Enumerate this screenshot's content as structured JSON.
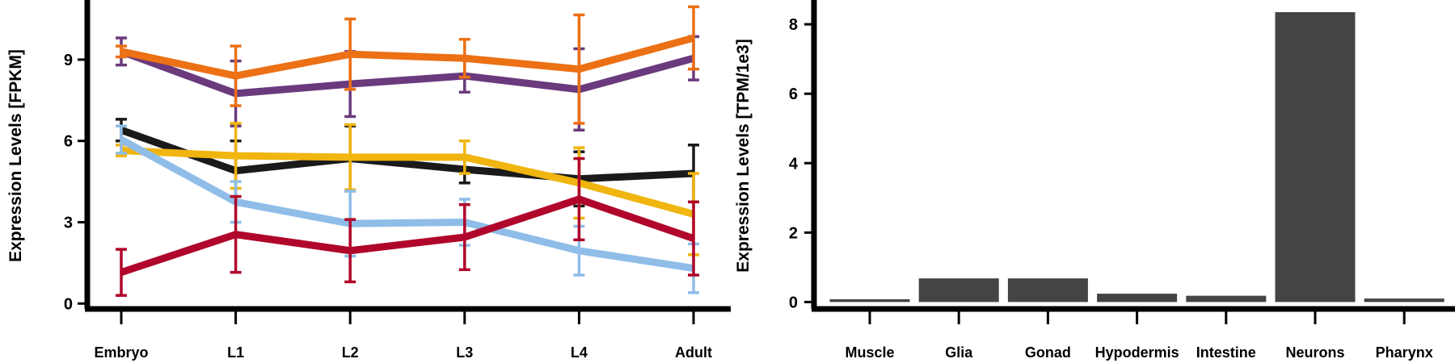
{
  "chart_data": [
    {
      "type": "line",
      "ylabel": "Expression Levels [FPKM]",
      "xlabel": "",
      "categories": [
        "Embryo",
        "L1",
        "L2",
        "L3",
        "L4",
        "Adult"
      ],
      "ylim": [
        -0.2,
        11.2
      ],
      "yticks": [
        "0",
        "3",
        "6",
        "9"
      ],
      "ytick_values": [
        0,
        3,
        6,
        9
      ],
      "grid": false,
      "series": [
        {
          "color": "#6b3a7d",
          "values": [
            9.3,
            7.75,
            8.1,
            8.4,
            7.9,
            9.05
          ],
          "errors": [
            0.5,
            1.2,
            1.2,
            0.6,
            1.5,
            0.8
          ]
        },
        {
          "color": "#ec7014",
          "values": [
            9.3,
            8.4,
            9.2,
            9.05,
            8.65,
            9.8
          ],
          "errors": [
            0.2,
            1.1,
            1.3,
            0.7,
            2.0,
            1.15
          ]
        },
        {
          "color": "#1a1a1a",
          "values": [
            6.4,
            4.9,
            5.35,
            4.95,
            4.6,
            4.8
          ],
          "errors": [
            0.4,
            1.1,
            1.2,
            0.5,
            1.0,
            1.05
          ]
        },
        {
          "color": "#f0b50f",
          "values": [
            5.65,
            5.45,
            5.4,
            5.4,
            4.45,
            3.3
          ],
          "errors": [
            0.2,
            1.2,
            1.2,
            0.6,
            1.3,
            1.5
          ]
        },
        {
          "color": "#8fbde8",
          "values": [
            6.05,
            3.75,
            2.95,
            3.0,
            1.95,
            1.3
          ],
          "errors": [
            0.5,
            0.75,
            1.2,
            0.85,
            0.9,
            0.9
          ]
        },
        {
          "color": "#b0062b",
          "values": [
            1.15,
            2.55,
            1.95,
            2.45,
            3.85,
            2.4
          ],
          "errors": [
            0.85,
            1.4,
            1.15,
            1.2,
            1.5,
            1.35
          ]
        }
      ]
    },
    {
      "type": "bar",
      "ylabel": "Expression Levels [TPM/1e3]",
      "xlabel": "",
      "categories": [
        "Muscle",
        "Glia",
        "Gonad",
        "Hypodermis",
        "Intestine",
        "Neurons",
        "Pharynx"
      ],
      "values": [
        0.08,
        0.68,
        0.68,
        0.24,
        0.18,
        8.35,
        0.1
      ],
      "ylim": [
        -0.2,
        8.7
      ],
      "yticks": [
        "0",
        "2",
        "4",
        "6",
        "8"
      ],
      "ytick_values": [
        0,
        2,
        4,
        6,
        8
      ],
      "bar_color": "#444444",
      "grid": false
    }
  ]
}
